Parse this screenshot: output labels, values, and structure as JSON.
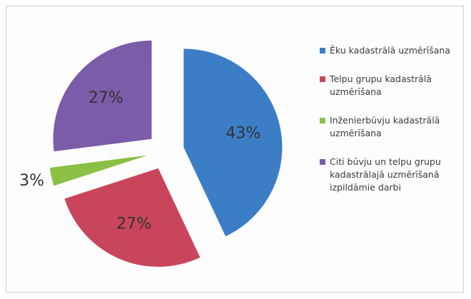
{
  "chart_data": {
    "type": "pie",
    "categories": [
      "Ēku kadastrālā uzmērīšana",
      "Telpu grupu kadastrālā uzmērīšana",
      "Inženierbūvju kadastrālā uzmērīšana",
      "Citi būvju un telpu grupu kadastrālajā uzmērīšanā izpildāmie darbi"
    ],
    "values": [
      43,
      27,
      3,
      27
    ],
    "value_labels": [
      "43%",
      "27%",
      "3%",
      "27%"
    ],
    "colors": [
      "#3b7ec6",
      "#c9455b",
      "#8cbf45",
      "#7a5ca8"
    ],
    "exploded": true,
    "legend": "right"
  }
}
